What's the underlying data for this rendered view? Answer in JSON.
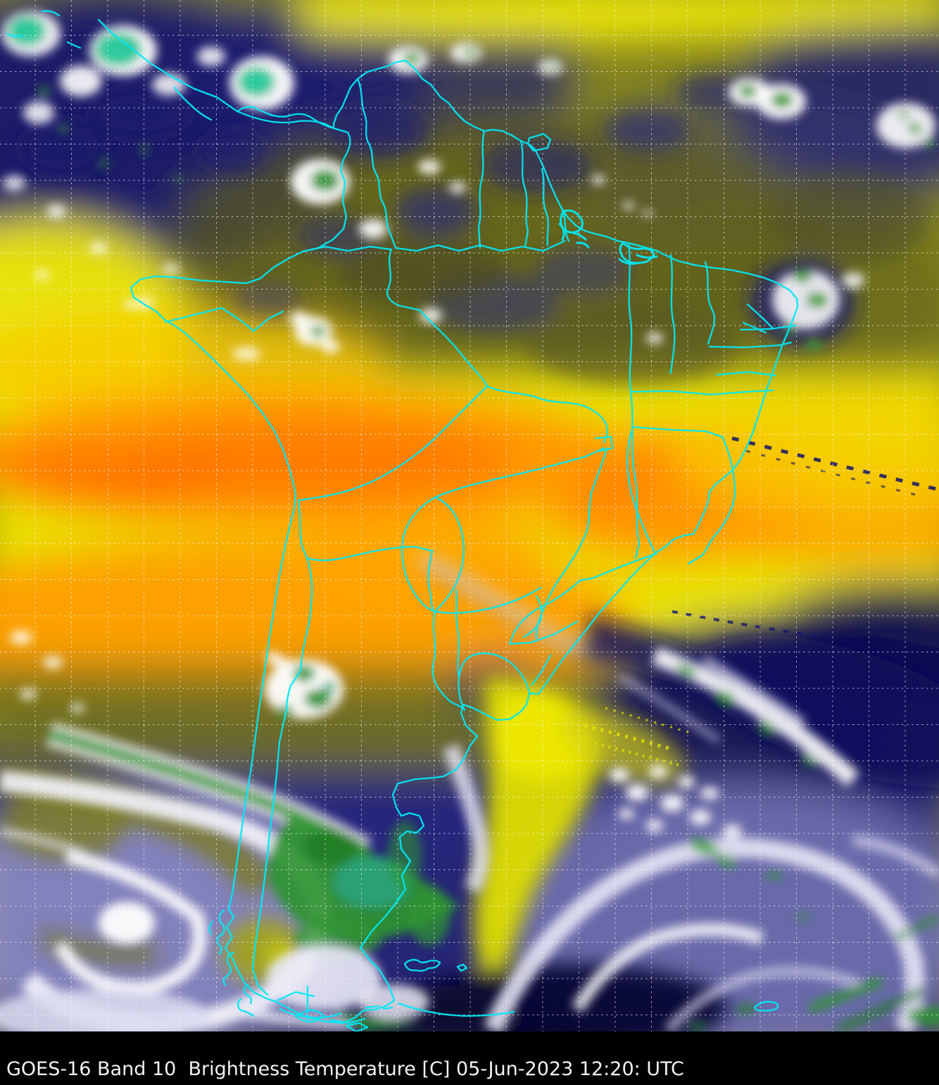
{
  "footer": {
    "caption": "GOES-16 Band 10  Brightness Temperature [C] 05-Jun-2023 12:20: UTC",
    "satellite": "GOES-16",
    "band": "Band 10",
    "product": "Brightness Temperature",
    "units": "C",
    "date": "05-Jun-2023",
    "time": "12:20: UTC",
    "text_color": "#f2f2f2",
    "background_color": "#000000"
  },
  "map": {
    "overlay": {
      "political_border_color": "#00e8f5",
      "graticule_color": "#ffffff",
      "graticule_style": "dotted"
    },
    "palette": {
      "warmest_orange_deep": "#ff7302",
      "orange": "#ff9a02",
      "gold": "#f8c405",
      "yellow_bright": "#f0ea06",
      "olive": "#8a8a1a",
      "olive_dark": "#55551f",
      "navy_cold": "#17176b",
      "navy_deep": "#0b0b46",
      "lavender_cloud": "#c6c6e4",
      "white_cloud": "#ffffff",
      "green_cold_tops": "#2e9431",
      "teal_coldest_tops": "#23c798"
    }
  }
}
